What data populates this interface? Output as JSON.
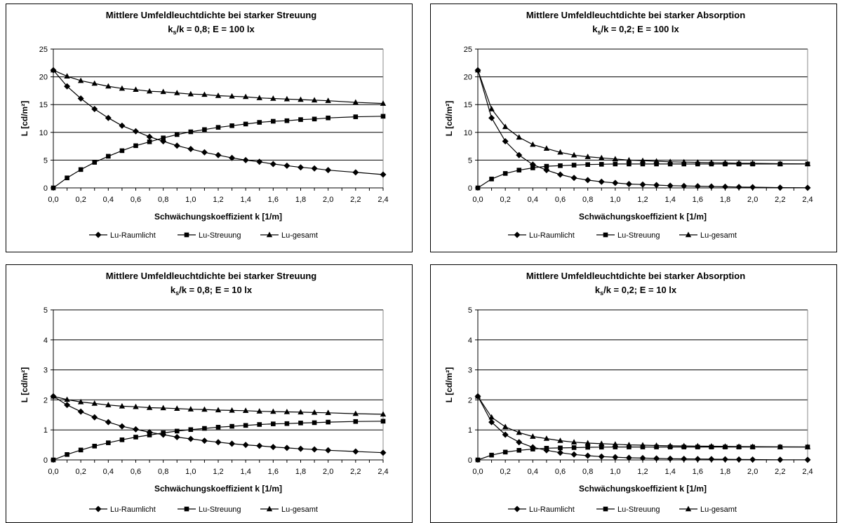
{
  "chart_data": [
    {
      "type": "line",
      "title": "Mittlere Umfeldleuchtdichte bei starker Streuung",
      "subtitle_pre": "k",
      "subtitle_sub": "s",
      "subtitle_post": "/k = 0,8; E = 100 lx",
      "xlabel": "Schwächungskoeffizient k [1/m]",
      "ylabel": "L [cd/m²]",
      "ylim": [
        0,
        25
      ],
      "yticks": [
        "0",
        "5",
        "10",
        "15",
        "20",
        "25"
      ],
      "xlim": [
        0,
        2.4
      ],
      "xticks": [
        "0,0",
        "0,2",
        "0,4",
        "0,6",
        "0,8",
        "1,0",
        "1,2",
        "1,4",
        "1,6",
        "1,8",
        "2,0",
        "2,2",
        "2,4"
      ],
      "grid": true,
      "legend": "bottom",
      "x": [
        0,
        0.1,
        0.2,
        0.3,
        0.4,
        0.5,
        0.6,
        0.7,
        0.8,
        0.9,
        1.0,
        1.1,
        1.2,
        1.3,
        1.4,
        1.5,
        1.6,
        1.7,
        1.8,
        1.9,
        2.0,
        2.2,
        2.4
      ],
      "series": [
        {
          "name": "Lu-Raumlicht",
          "marker": "diamond",
          "values": [
            21.2,
            18.3,
            16.1,
            14.2,
            12.6,
            11.2,
            10.2,
            9.2,
            8.4,
            7.6,
            7.0,
            6.4,
            5.9,
            5.4,
            5.0,
            4.7,
            4.3,
            4.0,
            3.7,
            3.5,
            3.2,
            2.8,
            2.4
          ]
        },
        {
          "name": "Lu-Streuung",
          "marker": "square",
          "values": [
            0,
            1.8,
            3.3,
            4.6,
            5.7,
            6.7,
            7.6,
            8.3,
            9.0,
            9.6,
            10.1,
            10.5,
            10.9,
            11.2,
            11.5,
            11.8,
            12.0,
            12.1,
            12.3,
            12.4,
            12.6,
            12.8,
            12.9
          ]
        },
        {
          "name": "Lu-gesamt",
          "marker": "triangle",
          "values": [
            21.2,
            20.1,
            19.3,
            18.8,
            18.3,
            17.9,
            17.7,
            17.4,
            17.3,
            17.1,
            16.9,
            16.8,
            16.6,
            16.5,
            16.4,
            16.2,
            16.1,
            16.0,
            15.9,
            15.8,
            15.7,
            15.4,
            15.2
          ]
        }
      ]
    },
    {
      "type": "line",
      "title": "Mittlere Umfeldleuchtdichte bei starker Absorption",
      "subtitle_pre": "k",
      "subtitle_sub": "s",
      "subtitle_post": "/k = 0,2; E = 100 lx",
      "xlabel": "Schwächungskoeffizient k [1/m]",
      "ylabel": "L [cd/m²]",
      "ylim": [
        0,
        25
      ],
      "yticks": [
        "0",
        "5",
        "10",
        "15",
        "20",
        "25"
      ],
      "xlim": [
        0,
        2.4
      ],
      "xticks": [
        "0,0",
        "0,2",
        "0,4",
        "0,6",
        "0,8",
        "1,0",
        "1,2",
        "1,4",
        "1,6",
        "1,8",
        "2,0",
        "2,2",
        "2,4"
      ],
      "grid": true,
      "legend": "bottom",
      "x": [
        0,
        0.1,
        0.2,
        0.3,
        0.4,
        0.5,
        0.6,
        0.7,
        0.8,
        0.9,
        1.0,
        1.1,
        1.2,
        1.3,
        1.4,
        1.5,
        1.6,
        1.7,
        1.8,
        1.9,
        2.0,
        2.2,
        2.4
      ],
      "series": [
        {
          "name": "Lu-Raumlicht",
          "marker": "diamond",
          "values": [
            21.2,
            12.6,
            8.4,
            5.9,
            4.2,
            3.2,
            2.4,
            1.8,
            1.4,
            1.1,
            0.9,
            0.7,
            0.6,
            0.5,
            0.4,
            0.35,
            0.3,
            0.25,
            0.2,
            0.15,
            0.12,
            0.05,
            0.02
          ]
        },
        {
          "name": "Lu-Streuung",
          "marker": "square",
          "values": [
            0,
            1.6,
            2.6,
            3.2,
            3.6,
            3.9,
            4.0,
            4.1,
            4.2,
            4.25,
            4.3,
            4.3,
            4.3,
            4.3,
            4.3,
            4.3,
            4.3,
            4.3,
            4.3,
            4.3,
            4.3,
            4.3,
            4.3
          ]
        },
        {
          "name": "Lu-gesamt",
          "marker": "triangle",
          "values": [
            21.2,
            14.2,
            11.0,
            9.1,
            7.8,
            7.1,
            6.4,
            5.9,
            5.6,
            5.4,
            5.2,
            5.0,
            4.9,
            4.8,
            4.7,
            4.65,
            4.6,
            4.55,
            4.5,
            4.45,
            4.42,
            4.35,
            4.32
          ]
        }
      ]
    },
    {
      "type": "line",
      "title": "Mittlere Umfeldleuchtdichte bei starker Streuung",
      "subtitle_pre": "k",
      "subtitle_sub": "s",
      "subtitle_post": "/k = 0,8; E = 10 lx",
      "xlabel": "Schwächungskoeffizient k [1/m]",
      "ylabel": "L [cd/m²]",
      "ylim": [
        0,
        5
      ],
      "yticks": [
        "0",
        "1",
        "2",
        "3",
        "4",
        "5"
      ],
      "xlim": [
        0,
        2.4
      ],
      "xticks": [
        "0,0",
        "0,2",
        "0,4",
        "0,6",
        "0,8",
        "1,0",
        "1,2",
        "1,4",
        "1,6",
        "1,8",
        "2,0",
        "2,2",
        "2,4"
      ],
      "grid": true,
      "legend": "bottom",
      "x": [
        0,
        0.1,
        0.2,
        0.3,
        0.4,
        0.5,
        0.6,
        0.7,
        0.8,
        0.9,
        1.0,
        1.1,
        1.2,
        1.3,
        1.4,
        1.5,
        1.6,
        1.7,
        1.8,
        1.9,
        2.0,
        2.2,
        2.4
      ],
      "series": [
        {
          "name": "Lu-Raumlicht",
          "marker": "diamond",
          "values": [
            2.12,
            1.83,
            1.61,
            1.42,
            1.26,
            1.12,
            1.02,
            0.92,
            0.84,
            0.76,
            0.7,
            0.64,
            0.59,
            0.54,
            0.5,
            0.47,
            0.43,
            0.4,
            0.37,
            0.35,
            0.32,
            0.28,
            0.24
          ]
        },
        {
          "name": "Lu-Streuung",
          "marker": "square",
          "values": [
            0,
            0.18,
            0.33,
            0.46,
            0.57,
            0.67,
            0.76,
            0.83,
            0.9,
            0.96,
            1.01,
            1.05,
            1.09,
            1.12,
            1.15,
            1.18,
            1.2,
            1.21,
            1.23,
            1.24,
            1.26,
            1.28,
            1.29
          ]
        },
        {
          "name": "Lu-gesamt",
          "marker": "triangle",
          "values": [
            2.12,
            2.01,
            1.93,
            1.88,
            1.83,
            1.79,
            1.77,
            1.74,
            1.73,
            1.71,
            1.69,
            1.68,
            1.66,
            1.65,
            1.64,
            1.62,
            1.61,
            1.6,
            1.59,
            1.58,
            1.57,
            1.54,
            1.52
          ]
        }
      ]
    },
    {
      "type": "line",
      "title": "Mittlere Umfeldleuchtdichte bei starker Absorption",
      "subtitle_pre": "k",
      "subtitle_sub": "s",
      "subtitle_post": "/k = 0,2; E = 10 lx",
      "xlabel": "Schwächungskoeffizient k [1/m]",
      "ylabel": "L [cd/m²]",
      "ylim": [
        0,
        5
      ],
      "yticks": [
        "0",
        "1",
        "2",
        "3",
        "4",
        "5"
      ],
      "xlim": [
        0,
        2.4
      ],
      "xticks": [
        "0,0",
        "0,2",
        "0,4",
        "0,6",
        "0,8",
        "1,0",
        "1,2",
        "1,4",
        "1,6",
        "1,8",
        "2,0",
        "2,2",
        "2,4"
      ],
      "grid": true,
      "legend": "bottom",
      "x": [
        0,
        0.1,
        0.2,
        0.3,
        0.4,
        0.5,
        0.6,
        0.7,
        0.8,
        0.9,
        1.0,
        1.1,
        1.2,
        1.3,
        1.4,
        1.5,
        1.6,
        1.7,
        1.8,
        1.9,
        2.0,
        2.2,
        2.4
      ],
      "series": [
        {
          "name": "Lu-Raumlicht",
          "marker": "diamond",
          "values": [
            2.12,
            1.26,
            0.84,
            0.59,
            0.42,
            0.32,
            0.24,
            0.18,
            0.14,
            0.11,
            0.09,
            0.07,
            0.06,
            0.05,
            0.04,
            0.035,
            0.03,
            0.025,
            0.02,
            0.015,
            0.012,
            0.005,
            0.002
          ]
        },
        {
          "name": "Lu-Streuung",
          "marker": "square",
          "values": [
            0,
            0.16,
            0.26,
            0.32,
            0.36,
            0.39,
            0.4,
            0.41,
            0.42,
            0.425,
            0.43,
            0.43,
            0.43,
            0.43,
            0.43,
            0.43,
            0.43,
            0.43,
            0.43,
            0.43,
            0.43,
            0.43,
            0.43
          ]
        },
        {
          "name": "Lu-gesamt",
          "marker": "triangle",
          "values": [
            2.12,
            1.42,
            1.1,
            0.91,
            0.78,
            0.71,
            0.64,
            0.59,
            0.56,
            0.54,
            0.52,
            0.5,
            0.49,
            0.48,
            0.47,
            0.465,
            0.46,
            0.455,
            0.45,
            0.445,
            0.442,
            0.435,
            0.432
          ]
        }
      ]
    }
  ]
}
